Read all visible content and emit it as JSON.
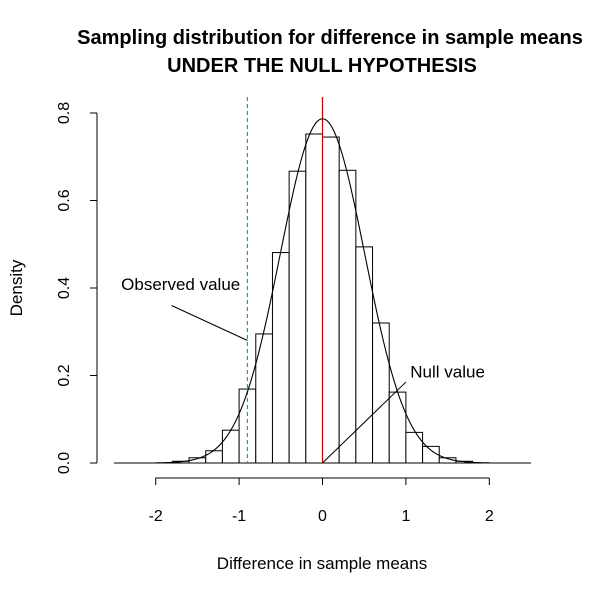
{
  "chart_data": {
    "type": "histogram",
    "title": "Sampling distribution for difference in sample means",
    "subtitle": "UNDER THE NULL HYPOTHESIS",
    "xlabel": "Difference in sample means",
    "ylabel": "Density",
    "xlim": [
      -2.5,
      2.5
    ],
    "ylim": [
      0,
      0.8
    ],
    "x_ticks": [
      "-2",
      "-1",
      "0",
      "1",
      "2"
    ],
    "y_ticks": [
      "0.0",
      "0.2",
      "0.4",
      "0.6",
      "0.8"
    ],
    "grid": false,
    "bin_width": 0.2,
    "bins": [
      {
        "x0": -1.8,
        "x1": -1.6,
        "density": 0.004
      },
      {
        "x0": -1.6,
        "x1": -1.4,
        "density": 0.012
      },
      {
        "x0": -1.4,
        "x1": -1.2,
        "density": 0.028
      },
      {
        "x0": -1.2,
        "x1": -1.0,
        "density": 0.075
      },
      {
        "x0": -1.0,
        "x1": -0.8,
        "density": 0.169
      },
      {
        "x0": -0.8,
        "x1": -0.6,
        "density": 0.295
      },
      {
        "x0": -0.6,
        "x1": -0.4,
        "density": 0.481
      },
      {
        "x0": -0.4,
        "x1": -0.2,
        "density": 0.667
      },
      {
        "x0": -0.2,
        "x1": 0.0,
        "density": 0.752
      },
      {
        "x0": 0.0,
        "x1": 0.2,
        "density": 0.745
      },
      {
        "x0": 0.2,
        "x1": 0.4,
        "density": 0.669
      },
      {
        "x0": 0.4,
        "x1": 0.6,
        "density": 0.494
      },
      {
        "x0": 0.6,
        "x1": 0.8,
        "density": 0.32
      },
      {
        "x0": 0.8,
        "x1": 1.0,
        "density": 0.162
      },
      {
        "x0": 1.0,
        "x1": 1.2,
        "density": 0.07
      },
      {
        "x0": 1.2,
        "x1": 1.4,
        "density": 0.038
      },
      {
        "x0": 1.4,
        "x1": 1.6,
        "density": 0.012
      },
      {
        "x0": 1.6,
        "x1": 1.8,
        "density": 0.004
      }
    ],
    "density_curve": {
      "distribution": "normal",
      "mean": 0.0,
      "sd": 0.507,
      "from": -2.0,
      "to": 2.0
    },
    "reference_lines": [
      {
        "x": -0.9,
        "style": "dashed",
        "color": "#00cc00"
      },
      {
        "x": 0.0,
        "style": "solid",
        "color": "#cc0000"
      }
    ],
    "annotations": [
      {
        "text": "Observed value",
        "x": -1.7,
        "y": 0.395,
        "arrow_to": [
          -0.9,
          0.28
        ]
      },
      {
        "text": "Null value",
        "x": 1.5,
        "y": 0.195,
        "arrow_to": [
          0.0,
          0.0
        ]
      }
    ]
  }
}
